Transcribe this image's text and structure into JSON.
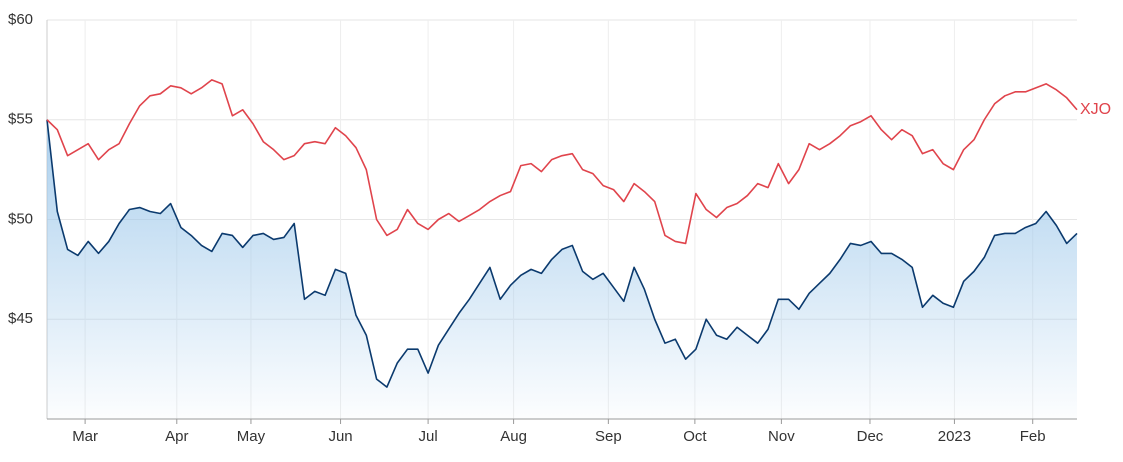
{
  "chart_data": {
    "type": "line",
    "x": [
      0,
      1,
      2,
      3,
      4,
      5,
      6,
      7,
      8,
      9,
      10,
      11,
      12,
      13,
      14,
      15,
      16,
      17,
      18,
      19,
      20,
      21,
      22,
      23,
      24,
      25,
      26,
      27,
      28,
      29,
      30,
      31,
      32,
      33,
      34,
      35,
      36,
      37,
      38,
      39,
      40,
      41,
      42,
      43,
      44,
      45,
      46,
      47,
      48,
      49,
      50,
      51,
      52,
      53,
      54,
      55,
      56,
      57,
      58,
      59,
      60,
      61,
      62,
      63,
      64,
      65,
      66,
      67,
      68,
      69,
      70,
      71,
      72,
      73,
      74,
      75,
      76,
      77,
      78,
      79,
      80,
      81,
      82,
      83,
      84,
      85,
      86,
      87,
      88,
      89,
      90,
      91,
      92,
      93,
      94,
      95,
      96,
      97,
      98,
      99,
      100
    ],
    "series": [
      {
        "color": "#0b3a6e",
        "area": true,
        "values": [
          55.0,
          50.4,
          48.5,
          48.2,
          48.9,
          48.3,
          48.9,
          49.8,
          50.5,
          50.6,
          50.4,
          50.3,
          50.8,
          49.6,
          49.2,
          48.7,
          48.4,
          49.3,
          49.2,
          48.6,
          49.2,
          49.3,
          49.0,
          49.1,
          49.8,
          46.0,
          46.4,
          46.2,
          47.5,
          47.3,
          45.2,
          44.2,
          42.0,
          41.6,
          42.8,
          43.5,
          43.5,
          42.3,
          43.7,
          44.5,
          45.3,
          46.0,
          46.8,
          47.6,
          46.0,
          46.7,
          47.2,
          47.5,
          47.3,
          48.0,
          48.5,
          48.7,
          47.4,
          47.0,
          47.3,
          46.6,
          45.9,
          47.6,
          46.5,
          45.0,
          43.8,
          44.0,
          43.0,
          43.5,
          45.0,
          44.2,
          44.0,
          44.6,
          44.2,
          43.8,
          44.5,
          46.0,
          46.0,
          45.5,
          46.3,
          46.8,
          47.3,
          48.0,
          48.8,
          48.7,
          48.9,
          48.3,
          48.3,
          48.0,
          47.6,
          45.6,
          46.2,
          45.8,
          45.6,
          46.9,
          47.4,
          48.1,
          49.2,
          49.3,
          49.3,
          49.6,
          49.8,
          50.4,
          49.7,
          48.8,
          49.3
        ]
      },
      {
        "name": "XJO",
        "color": "#e0444c",
        "values": [
          55.0,
          54.5,
          53.2,
          53.5,
          53.8,
          53.0,
          53.5,
          53.8,
          54.8,
          55.7,
          56.2,
          56.3,
          56.7,
          56.6,
          56.3,
          56.6,
          57.0,
          56.8,
          55.2,
          55.5,
          54.8,
          53.9,
          53.5,
          53.0,
          53.2,
          53.8,
          53.9,
          53.8,
          54.6,
          54.2,
          53.6,
          52.5,
          50.0,
          49.2,
          49.5,
          50.5,
          49.8,
          49.5,
          50.0,
          50.3,
          49.9,
          50.2,
          50.5,
          50.9,
          51.2,
          51.4,
          52.7,
          52.8,
          52.4,
          53.0,
          53.2,
          53.3,
          52.5,
          52.3,
          51.7,
          51.5,
          50.9,
          51.8,
          51.4,
          50.9,
          49.2,
          48.9,
          48.8,
          51.3,
          50.5,
          50.1,
          50.6,
          50.8,
          51.2,
          51.8,
          51.6,
          52.8,
          51.8,
          52.5,
          53.8,
          53.5,
          53.8,
          54.2,
          54.7,
          54.9,
          55.2,
          54.5,
          54.0,
          54.5,
          54.2,
          53.3,
          53.5,
          52.8,
          52.5,
          53.5,
          54.0,
          55.0,
          55.8,
          56.2,
          56.4,
          56.4,
          56.6,
          56.8,
          56.5,
          56.1,
          55.5
        ]
      }
    ],
    "xlim": [
      0,
      100
    ],
    "xticks": [
      {
        "value": 3.7,
        "label": "Mar"
      },
      {
        "value": 12.6,
        "label": "Apr"
      },
      {
        "value": 19.8,
        "label": "May"
      },
      {
        "value": 28.5,
        "label": "Jun"
      },
      {
        "value": 37,
        "label": "Jul"
      },
      {
        "value": 45.3,
        "label": "Aug"
      },
      {
        "value": 54.5,
        "label": "Sep"
      },
      {
        "value": 62.9,
        "label": "Oct"
      },
      {
        "value": 71.3,
        "label": "Nov"
      },
      {
        "value": 79.9,
        "label": "Dec"
      },
      {
        "value": 88.1,
        "label": "2023"
      },
      {
        "value": 95.7,
        "label": "Feb"
      }
    ],
    "ylim": [
      40,
      60
    ],
    "yticks": [
      {
        "value": 45,
        "label": "$45"
      },
      {
        "value": 50,
        "label": "$50"
      },
      {
        "value": 55,
        "label": "$55"
      },
      {
        "value": 60,
        "label": "$60"
      }
    ],
    "grid": true
  }
}
